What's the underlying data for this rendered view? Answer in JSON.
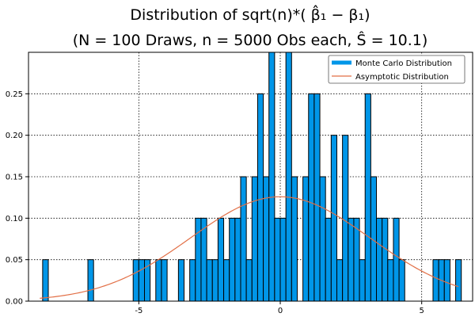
{
  "chart_data": {
    "type": "bar",
    "title_lines": [
      "Distribution of sqrt(n)*( β̂₁ − β₁)",
      "(N = 100 Draws, n = 5000 Obs each, Ŝ = 10.1)"
    ],
    "xlabel": "",
    "ylabel": "",
    "xlim": [
      -8.9,
      6.8
    ],
    "ylim": [
      0,
      0.3
    ],
    "x_ticks": [
      -5,
      0,
      5
    ],
    "x_tick_labels": [
      "-5",
      "0",
      "5"
    ],
    "y_ticks": [
      0.0,
      0.05,
      0.1,
      0.15,
      0.2,
      0.25
    ],
    "y_tick_labels": [
      "0.00",
      "0.05",
      "0.10",
      "0.15",
      "0.20",
      "0.25"
    ],
    "grid": true,
    "legend_position": "top-right",
    "bin_width": 0.2,
    "series": [
      {
        "name": "Monte Carlo Distribution",
        "kind": "histogram",
        "color": "#0096e8",
        "edge_color": "#000000",
        "bins": [
          [
            -8.4,
            0.05
          ],
          [
            -6.8,
            0.05
          ],
          [
            -5.2,
            0.05
          ],
          [
            -5.0,
            0.05
          ],
          [
            -4.8,
            0.05
          ],
          [
            -4.4,
            0.05
          ],
          [
            -4.2,
            0.05
          ],
          [
            -3.6,
            0.05
          ],
          [
            -3.2,
            0.05
          ],
          [
            -3.0,
            0.1
          ],
          [
            -2.8,
            0.1
          ],
          [
            -2.6,
            0.05
          ],
          [
            -2.4,
            0.05
          ],
          [
            -2.2,
            0.1
          ],
          [
            -2.0,
            0.05
          ],
          [
            -1.8,
            0.1
          ],
          [
            -1.6,
            0.1
          ],
          [
            -1.4,
            0.15
          ],
          [
            -1.2,
            0.05
          ],
          [
            -1.0,
            0.15
          ],
          [
            -0.8,
            0.25
          ],
          [
            -0.6,
            0.15
          ],
          [
            -0.4,
            0.3
          ],
          [
            -0.2,
            0.1
          ],
          [
            0.0,
            0.1
          ],
          [
            0.2,
            0.3
          ],
          [
            0.4,
            0.15
          ],
          [
            0.8,
            0.15
          ],
          [
            1.0,
            0.25
          ],
          [
            1.2,
            0.25
          ],
          [
            1.4,
            0.15
          ],
          [
            1.6,
            0.1
          ],
          [
            1.8,
            0.2
          ],
          [
            2.0,
            0.05
          ],
          [
            2.2,
            0.2
          ],
          [
            2.4,
            0.1
          ],
          [
            2.6,
            0.1
          ],
          [
            2.8,
            0.05
          ],
          [
            3.0,
            0.25
          ],
          [
            3.2,
            0.15
          ],
          [
            3.4,
            0.1
          ],
          [
            3.6,
            0.1
          ],
          [
            3.8,
            0.05
          ],
          [
            4.0,
            0.1
          ],
          [
            4.2,
            0.05
          ],
          [
            5.4,
            0.05
          ],
          [
            5.6,
            0.05
          ],
          [
            5.8,
            0.05
          ],
          [
            6.2,
            0.05
          ]
        ]
      },
      {
        "name": "Asymptotic Distribution",
        "kind": "normal-density",
        "color": "#e26f46",
        "mean": 0,
        "sd": 3.17,
        "x_range": [
          -8.5,
          6.3
        ]
      }
    ]
  }
}
